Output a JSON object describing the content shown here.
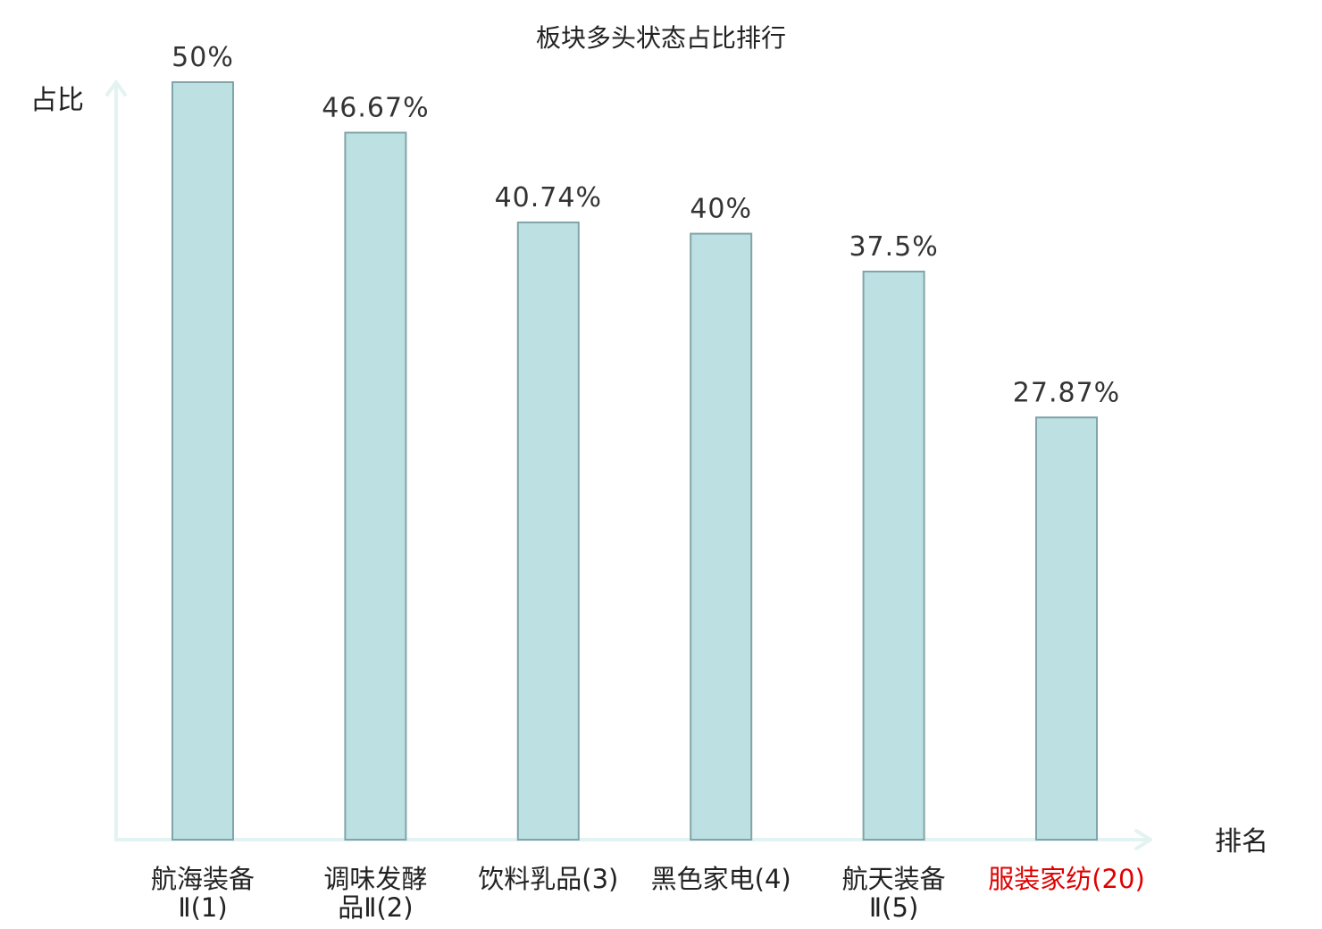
{
  "chart_data": {
    "type": "bar",
    "title": "板块多头状态占比排行",
    "ylabel": "占比",
    "xlabel": "排名",
    "ylim": [
      0,
      50
    ],
    "categories": [
      {
        "name": [
          "航海装备",
          "Ⅱ(1)"
        ],
        "highlight": false
      },
      {
        "name": [
          "调味发酵",
          "品Ⅱ(2)"
        ],
        "highlight": false
      },
      {
        "name": [
          "饮料乳品(3)"
        ],
        "highlight": false
      },
      {
        "name": [
          "黑色家电(4)"
        ],
        "highlight": false
      },
      {
        "name": [
          "航天装备",
          "Ⅱ(5)"
        ],
        "highlight": false
      },
      {
        "name": [
          "服装家纺(20)"
        ],
        "highlight": true
      }
    ],
    "values": [
      50,
      46.67,
      40.74,
      40,
      37.5,
      27.87
    ],
    "value_labels": [
      "50%",
      "46.67%",
      "40.74%",
      "40%",
      "37.5%",
      "27.87%"
    ],
    "colors": {
      "bar": "#bde0e3",
      "bar_border": "#7fa5a8",
      "axis": "#e3f3f1",
      "highlight": "#e00000"
    }
  }
}
